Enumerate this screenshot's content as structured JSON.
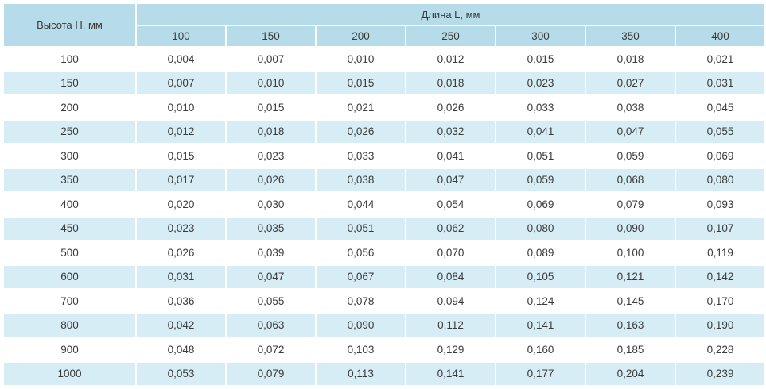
{
  "table": {
    "row_header_label": "Высота H, мм",
    "column_group_label": "Длина L, мм",
    "columns": [
      "100",
      "150",
      "200",
      "250",
      "300",
      "350",
      "400"
    ],
    "rows": [
      {
        "h": "100",
        "values": [
          "0,004",
          "0,007",
          "0,010",
          "0,012",
          "0,015",
          "0,018",
          "0,021"
        ]
      },
      {
        "h": "150",
        "values": [
          "0,007",
          "0,010",
          "0,015",
          "0,018",
          "0,023",
          "0,027",
          "0,031"
        ]
      },
      {
        "h": "200",
        "values": [
          "0,010",
          "0,015",
          "0,021",
          "0,026",
          "0,033",
          "0,038",
          "0,045"
        ]
      },
      {
        "h": "250",
        "values": [
          "0,012",
          "0,018",
          "0,026",
          "0,032",
          "0,041",
          "0,047",
          "0,055"
        ]
      },
      {
        "h": "300",
        "values": [
          "0,015",
          "0,023",
          "0,033",
          "0,041",
          "0,051",
          "0,059",
          "0,069"
        ]
      },
      {
        "h": "350",
        "values": [
          "0,017",
          "0,026",
          "0,038",
          "0,047",
          "0,059",
          "0,068",
          "0,080"
        ]
      },
      {
        "h": "400",
        "values": [
          "0,020",
          "0,030",
          "0,044",
          "0,054",
          "0,069",
          "0,079",
          "0,093"
        ]
      },
      {
        "h": "450",
        "values": [
          "0,023",
          "0,035",
          "0,051",
          "0,062",
          "0,080",
          "0,090",
          "0,107"
        ]
      },
      {
        "h": "500",
        "values": [
          "0,026",
          "0,039",
          "0,056",
          "0,070",
          "0,089",
          "0,100",
          "0,119"
        ]
      },
      {
        "h": "600",
        "values": [
          "0,031",
          "0,047",
          "0,067",
          "0,084",
          "0,105",
          "0,121",
          "0,142"
        ]
      },
      {
        "h": "700",
        "values": [
          "0,036",
          "0,055",
          "0,078",
          "0,094",
          "0,124",
          "0,145",
          "0,170"
        ]
      },
      {
        "h": "800",
        "values": [
          "0,042",
          "0,063",
          "0,090",
          "0,112",
          "0,141",
          "0,163",
          "0,190"
        ]
      },
      {
        "h": "900",
        "values": [
          "0,048",
          "0,072",
          "0,103",
          "0,129",
          "0,160",
          "0,185",
          "0,228"
        ]
      },
      {
        "h": "1000",
        "values": [
          "0,053",
          "0,079",
          "0,113",
          "0,141",
          "0,177",
          "0,204",
          "0,239"
        ]
      }
    ]
  },
  "colors": {
    "header_bg": "#b7dce9",
    "stripe_bg": "#d7edf5",
    "text": "#3a3a3a"
  }
}
